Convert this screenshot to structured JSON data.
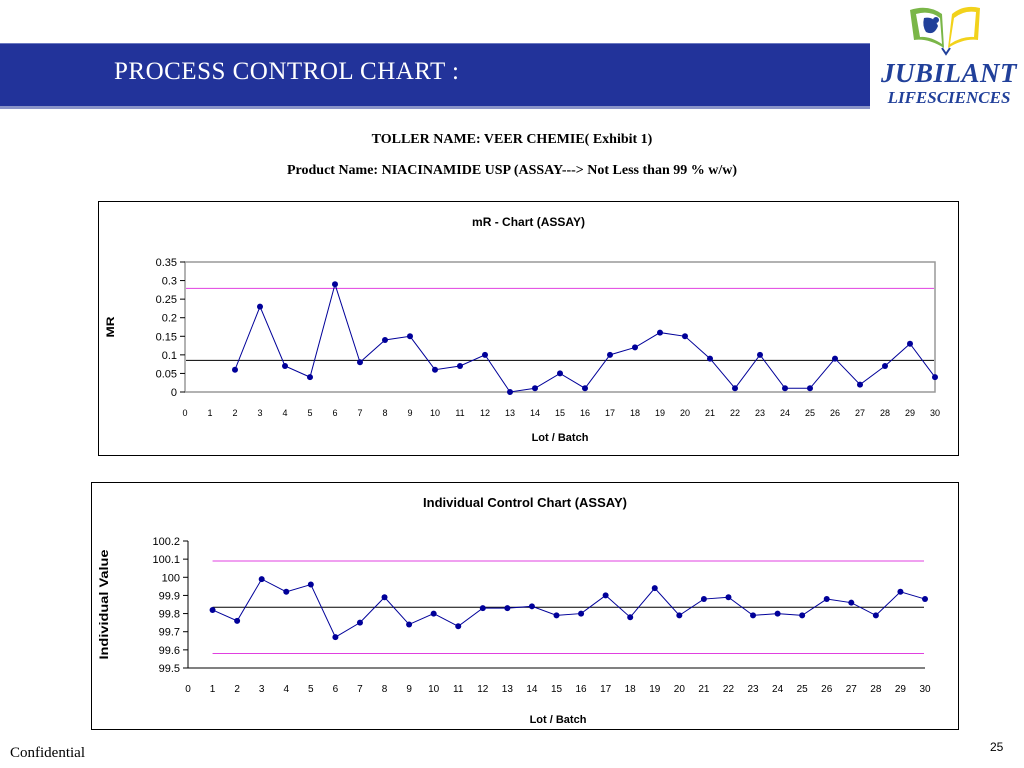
{
  "slide": {
    "title": "PROCESS CONTROL CHART :",
    "toller": "TOLLER NAME: VEER CHEMIE( Exhibit 1)",
    "product": "Product Name: NIACINAMIDE USP (ASSAY---> Not Less than 99 % w/w)",
    "footer_left": "Confidential",
    "page_number": "25"
  },
  "logo": {
    "word1": "JUBILANT",
    "word2": "LIFESCIENCES",
    "colors": {
      "blue": "#21409a",
      "green": "#7ab648",
      "yellow": "#f2d21b"
    }
  },
  "colors": {
    "header_bar": "#22339a",
    "series": "#000099",
    "control_limit": "#e040e0",
    "center_line": "#000000"
  },
  "chart_data": [
    {
      "type": "line",
      "title": "mR - Chart (ASSAY)",
      "xlabel": "Lot / Batch",
      "ylabel": "MR",
      "xlim": [
        0,
        30
      ],
      "ylim": [
        0,
        0.35
      ],
      "x_ticks": [
        0,
        1,
        2,
        3,
        4,
        5,
        6,
        7,
        8,
        9,
        10,
        11,
        12,
        13,
        14,
        15,
        16,
        17,
        18,
        19,
        20,
        21,
        22,
        23,
        24,
        25,
        26,
        27,
        28,
        29,
        30
      ],
      "y_ticks": [
        "0",
        "0.05",
        "0.1",
        "0.15",
        "0.2",
        "0.25",
        "0.3",
        "0.35"
      ],
      "grid": false,
      "plot_border": true,
      "series": [
        {
          "x": [
            2,
            3,
            4,
            5,
            6,
            7,
            8,
            9,
            10,
            11,
            12,
            13,
            14,
            15,
            16,
            17,
            18,
            19,
            20,
            21,
            22,
            23,
            24,
            25,
            26,
            27,
            28,
            29,
            30
          ],
          "values": [
            0.06,
            0.23,
            0.07,
            0.04,
            0.29,
            0.08,
            0.14,
            0.15,
            0.06,
            0.07,
            0.1,
            0.0,
            0.01,
            0.05,
            0.01,
            0.1,
            0.12,
            0.16,
            0.15,
            0.09,
            0.01,
            0.1,
            0.01,
            0.01,
            0.09,
            0.02,
            0.07,
            0.13,
            0.04
          ]
        }
      ],
      "reference_lines": [
        {
          "kind": "upper_control_limit",
          "value": 0.279,
          "x_range": [
            0,
            30
          ]
        },
        {
          "kind": "center_line",
          "value": 0.085,
          "x_range": [
            0,
            30
          ]
        }
      ]
    },
    {
      "type": "line",
      "title": "Individual Control Chart (ASSAY)",
      "xlabel": "Lot / Batch",
      "ylabel": "Individual Value",
      "xlim": [
        0,
        30
      ],
      "ylim": [
        99.5,
        100.2
      ],
      "x_ticks": [
        0,
        1,
        2,
        3,
        4,
        5,
        6,
        7,
        8,
        9,
        10,
        11,
        12,
        13,
        14,
        15,
        16,
        17,
        18,
        19,
        20,
        21,
        22,
        23,
        24,
        25,
        26,
        27,
        28,
        29,
        30
      ],
      "y_ticks": [
        "99.5",
        "99.6",
        "99.7",
        "99.8",
        "99.9",
        "100",
        "100.1",
        "100.2"
      ],
      "grid": false,
      "plot_border": false,
      "series": [
        {
          "x": [
            1,
            2,
            3,
            4,
            5,
            6,
            7,
            8,
            9,
            10,
            11,
            12,
            13,
            14,
            15,
            16,
            17,
            18,
            19,
            20,
            21,
            22,
            23,
            24,
            25,
            26,
            27,
            28,
            29,
            30
          ],
          "values": [
            99.82,
            99.76,
            99.99,
            99.92,
            99.96,
            99.67,
            99.75,
            99.89,
            99.74,
            99.8,
            99.73,
            99.83,
            99.83,
            99.84,
            99.79,
            99.8,
            99.9,
            99.78,
            99.94,
            99.79,
            99.88,
            99.89,
            99.79,
            99.8,
            99.79,
            99.88,
            99.86,
            99.79,
            99.92,
            99.88
          ]
        }
      ],
      "reference_lines": [
        {
          "kind": "upper_control_limit",
          "value": 100.09,
          "x_range": [
            1,
            30
          ]
        },
        {
          "kind": "center_line",
          "value": 99.835,
          "x_range": [
            1,
            30
          ]
        },
        {
          "kind": "lower_control_limit",
          "value": 99.58,
          "x_range": [
            1,
            30
          ]
        }
      ]
    }
  ]
}
